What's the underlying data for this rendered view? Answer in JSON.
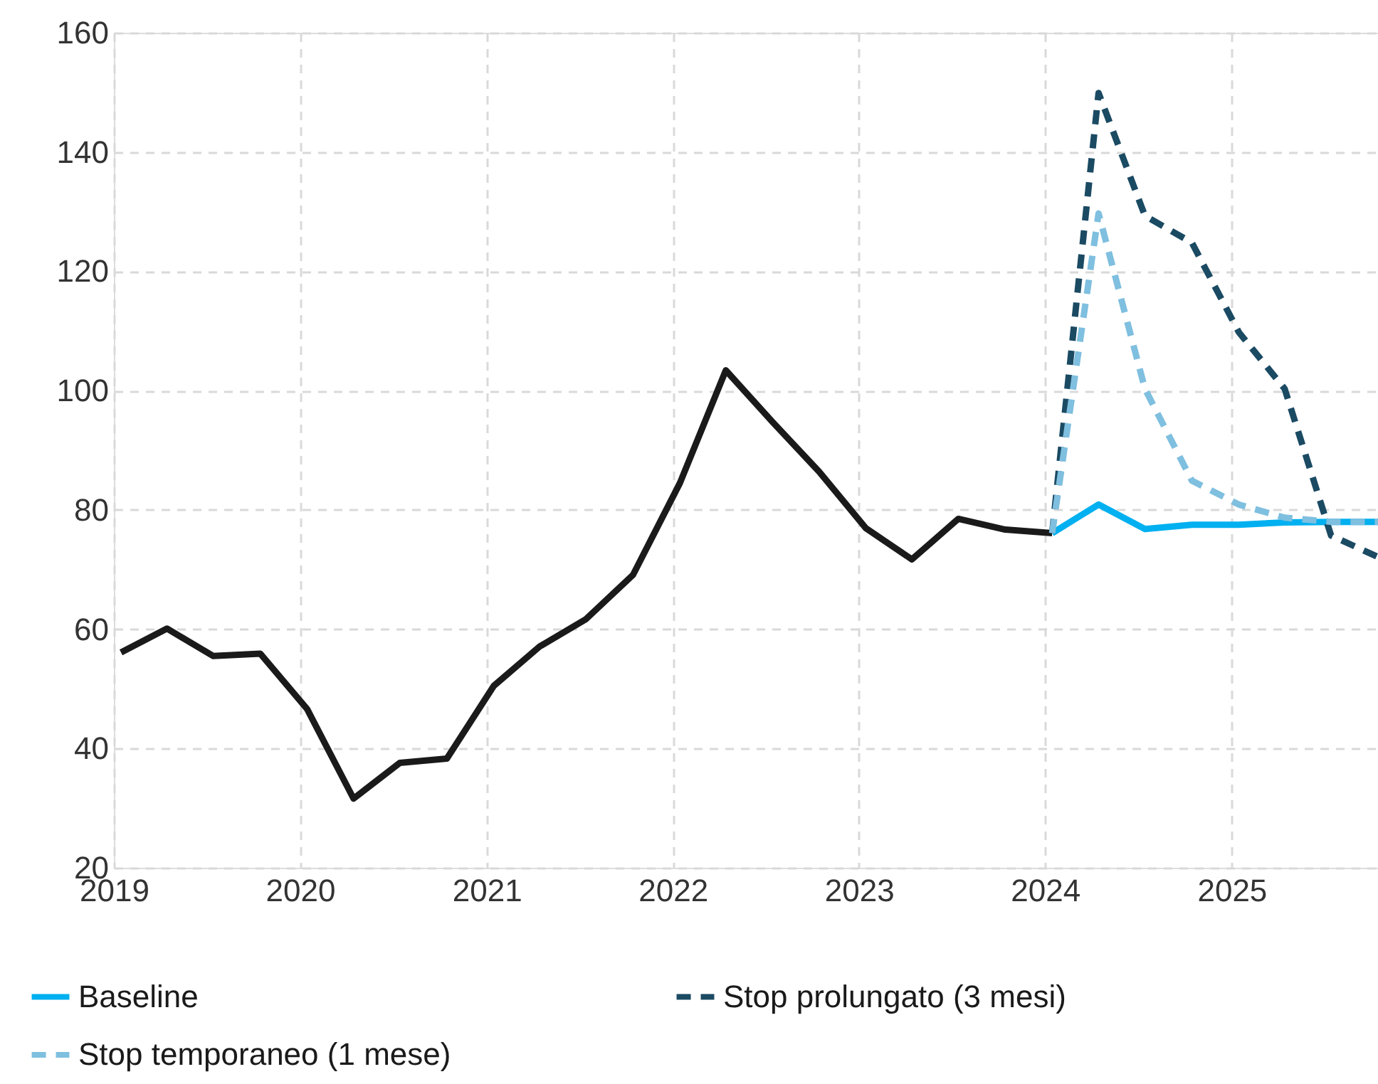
{
  "chart_data": {
    "type": "line",
    "xlim": [
      "2019-01-01",
      "2025-10-15"
    ],
    "xticks": [
      "2019",
      "2020",
      "2021",
      "2022",
      "2023",
      "2024",
      "2025"
    ],
    "ylim": [
      20,
      160
    ],
    "yticks": [
      20,
      40,
      60,
      80,
      100,
      120,
      140,
      160
    ],
    "grid": true,
    "legend": "bottom",
    "marker": "none",
    "series": [
      {
        "color": "#1a1a1a",
        "line_style": "solid",
        "x": [
          "2019-01-15",
          "2019-04-15",
          "2019-07-15",
          "2019-10-15",
          "2020-01-15",
          "2020-04-15",
          "2020-07-15",
          "2020-10-15",
          "2021-01-15",
          "2021-04-15",
          "2021-07-15",
          "2021-10-15",
          "2022-01-15",
          "2022-04-15",
          "2022-07-15",
          "2022-10-15",
          "2023-01-15",
          "2023-04-15",
          "2023-07-15",
          "2023-10-15",
          "2024-01-15"
        ],
        "values": [
          56.1,
          60.1,
          55.5,
          55.9,
          46.6,
          31.6,
          37.6,
          38.3,
          50.5,
          57.1,
          61.7,
          69.1,
          84.5,
          103.4,
          94.8,
          86.4,
          76.9,
          71.7,
          78.5,
          76.7,
          76.1
        ]
      },
      {
        "name": "Baseline",
        "color": "#00b0f0",
        "line_style": "solid",
        "x": [
          "2024-01-15",
          "2024-04-15",
          "2024-07-15",
          "2024-10-15",
          "2025-01-15",
          "2025-04-15",
          "2025-07-15",
          "2025-10-15"
        ],
        "values": [
          76.1,
          80.9,
          76.8,
          77.5,
          77.5,
          77.9,
          78.0,
          78.0
        ]
      },
      {
        "name": "Stop prolungato (3 mesi)",
        "color": "#1b4a63",
        "line_style": "dashed",
        "x": [
          "2024-01-15",
          "2024-04-15",
          "2024-07-15",
          "2024-10-15",
          "2025-01-15",
          "2025-04-15",
          "2025-07-15",
          "2025-10-15"
        ],
        "values": [
          76.1,
          149.9,
          129.3,
          124.8,
          109.8,
          100.3,
          75.7,
          72.1
        ]
      },
      {
        "name": "Stop temporaneo (1 mese)",
        "color": "#7fbfdf",
        "line_style": "dashed",
        "x": [
          "2024-01-15",
          "2024-04-15",
          "2024-07-15",
          "2024-10-15",
          "2025-01-15",
          "2025-04-15",
          "2025-07-15",
          "2025-10-15"
        ],
        "values": [
          76.1,
          129.7,
          100.3,
          84.9,
          80.9,
          78.7,
          78.0,
          78.0
        ]
      }
    ]
  }
}
